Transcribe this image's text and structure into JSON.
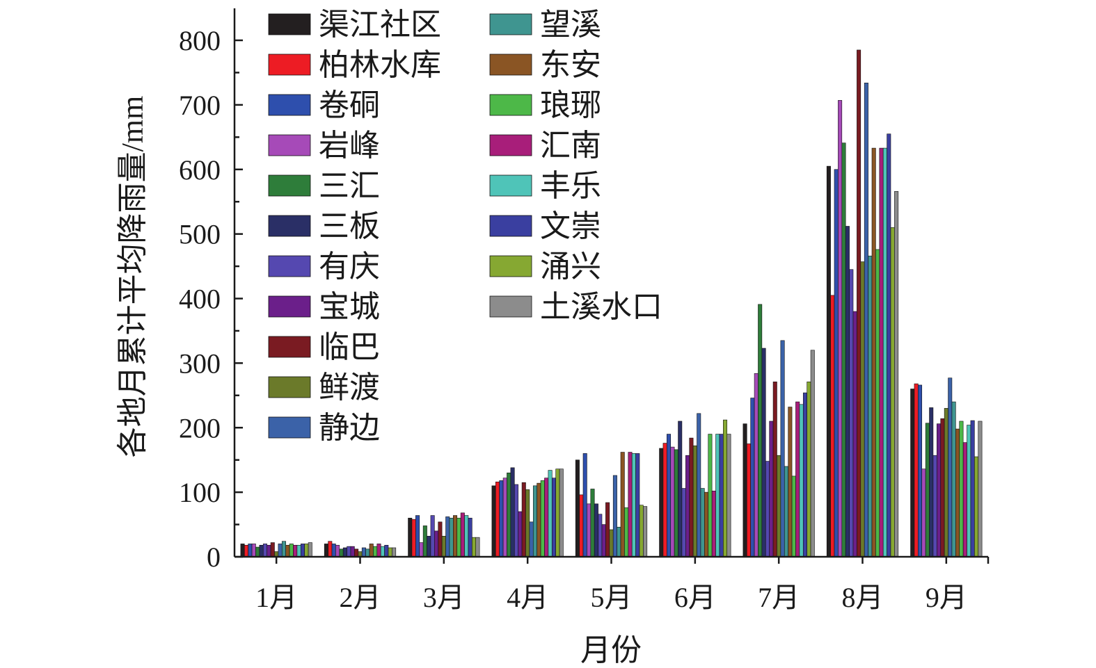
{
  "chart_data": {
    "type": "bar",
    "xlabel": "月份",
    "ylabel": "各地月累计平均降雨量/mm",
    "ylim": [
      0,
      850
    ],
    "yticks": [
      0,
      100,
      200,
      300,
      400,
      500,
      600,
      700,
      800
    ],
    "grid": false,
    "legend_position": "top-left",
    "categories": [
      "1月",
      "2月",
      "3月",
      "4月",
      "5月",
      "6月",
      "7月",
      "8月",
      "9月"
    ],
    "series": [
      {
        "name": "渠江社区",
        "color": "#231f20",
        "values": [
          20,
          20,
          60,
          110,
          150,
          168,
          206,
          605,
          260
        ]
      },
      {
        "name": "柏林水库",
        "color": "#ed1c24",
        "values": [
          18,
          24,
          58,
          116,
          96,
          176,
          175,
          405,
          268
        ]
      },
      {
        "name": "卷硐",
        "color": "#2e4fad",
        "values": [
          20,
          20,
          64,
          118,
          160,
          190,
          246,
          600,
          266
        ]
      },
      {
        "name": "岩峰",
        "color": "#a64ab8",
        "values": [
          20,
          18,
          22,
          122,
          82,
          170,
          284,
          707,
          136
        ]
      },
      {
        "name": "三汇",
        "color": "#2e7d3a",
        "values": [
          15,
          12,
          48,
          130,
          105,
          166,
          391,
          641,
          207
        ]
      },
      {
        "name": "三板",
        "color": "#2a2f66",
        "values": [
          18,
          14,
          32,
          138,
          82,
          210,
          323,
          512,
          231
        ]
      },
      {
        "name": "有庆",
        "color": "#5548b0",
        "values": [
          20,
          16,
          64,
          112,
          66,
          106,
          148,
          445,
          157
        ]
      },
      {
        "name": "宝城",
        "color": "#6b1f8a",
        "values": [
          18,
          16,
          40,
          70,
          50,
          157,
          210,
          380,
          206
        ]
      },
      {
        "name": "临巴",
        "color": "#7a1b22",
        "values": [
          22,
          12,
          54,
          115,
          84,
          184,
          271,
          785,
          214
        ]
      },
      {
        "name": "鲜渡",
        "color": "#6b7a2a",
        "values": [
          8,
          8,
          32,
          104,
          42,
          172,
          157,
          457,
          230
        ]
      },
      {
        "name": "静边",
        "color": "#3b62a8",
        "values": [
          20,
          14,
          62,
          54,
          126,
          222,
          335,
          734,
          277
        ]
      },
      {
        "name": "望溪",
        "color": "#3f9590",
        "values": [
          24,
          12,
          60,
          110,
          46,
          106,
          140,
          466,
          240
        ]
      },
      {
        "name": "东安",
        "color": "#8a5524",
        "values": [
          18,
          20,
          64,
          114,
          162,
          100,
          232,
          633,
          198
        ]
      },
      {
        "name": "琅琊",
        "color": "#4db848",
        "values": [
          20,
          16,
          60,
          118,
          76,
          190,
          125,
          476,
          210
        ]
      },
      {
        "name": "汇南",
        "color": "#a81e7a",
        "values": [
          18,
          20,
          68,
          122,
          162,
          102,
          240,
          633,
          177
        ]
      },
      {
        "name": "丰乐",
        "color": "#4fc4b8",
        "values": [
          18,
          16,
          64,
          134,
          160,
          190,
          236,
          633,
          204
        ]
      },
      {
        "name": "文崇",
        "color": "#3a3fa0",
        "values": [
          20,
          18,
          60,
          122,
          160,
          190,
          254,
          655,
          211
        ]
      },
      {
        "name": "涌兴",
        "color": "#86a832",
        "values": [
          20,
          14,
          30,
          136,
          80,
          212,
          271,
          510,
          155
        ]
      },
      {
        "name": "土溪水口",
        "color": "#8c8c8c",
        "values": [
          22,
          14,
          30,
          136,
          78,
          190,
          320,
          566,
          210
        ]
      }
    ]
  }
}
